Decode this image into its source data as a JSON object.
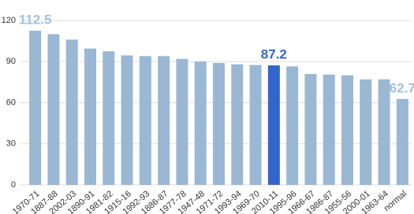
{
  "chart_data": {
    "type": "bar",
    "categories": [
      "1970-71",
      "1887-88",
      "2002-03",
      "1890-91",
      "1981-82",
      "1915-16",
      "1992-93",
      "1886-87",
      "1977-78",
      "1947-48",
      "1971-72",
      "1993-94",
      "1969-70",
      "2010-11",
      "1995-96",
      "1966-67",
      "1986-87",
      "1955-56",
      "2000-01",
      "1963-64",
      "normal"
    ],
    "values": [
      112.5,
      110,
      106,
      99.5,
      97.5,
      94.5,
      94,
      94,
      92,
      90,
      89,
      88,
      87.5,
      87.2,
      86.5,
      81,
      80.5,
      80,
      77,
      77,
      62.7
    ],
    "value_labels": [
      "112.5",
      null,
      null,
      null,
      null,
      null,
      null,
      null,
      null,
      null,
      null,
      null,
      null,
      "87.2",
      null,
      null,
      null,
      null,
      null,
      null,
      "62.7"
    ],
    "colors": [
      "#9ab7d3",
      "#9ab7d3",
      "#9ab7d3",
      "#9ab7d3",
      "#9ab7d3",
      "#9ab7d3",
      "#9ab7d3",
      "#9ab7d3",
      "#9ab7d3",
      "#9ab7d3",
      "#9ab7d3",
      "#9ab7d3",
      "#9ab7d3",
      "#3366cc",
      "#9ab7d3",
      "#9ab7d3",
      "#9ab7d3",
      "#9ab7d3",
      "#9ab7d3",
      "#9ab7d3",
      "#9ab7d3"
    ],
    "label_colors": [
      "#a3c0dc",
      null,
      null,
      null,
      null,
      null,
      null,
      null,
      null,
      null,
      null,
      null,
      null,
      "#3366cc",
      null,
      null,
      null,
      null,
      null,
      null,
      "#a3c0dc"
    ],
    "ylim": [
      0,
      120
    ],
    "yticks": [
      0,
      30,
      60,
      90,
      120
    ],
    "grid": true
  }
}
